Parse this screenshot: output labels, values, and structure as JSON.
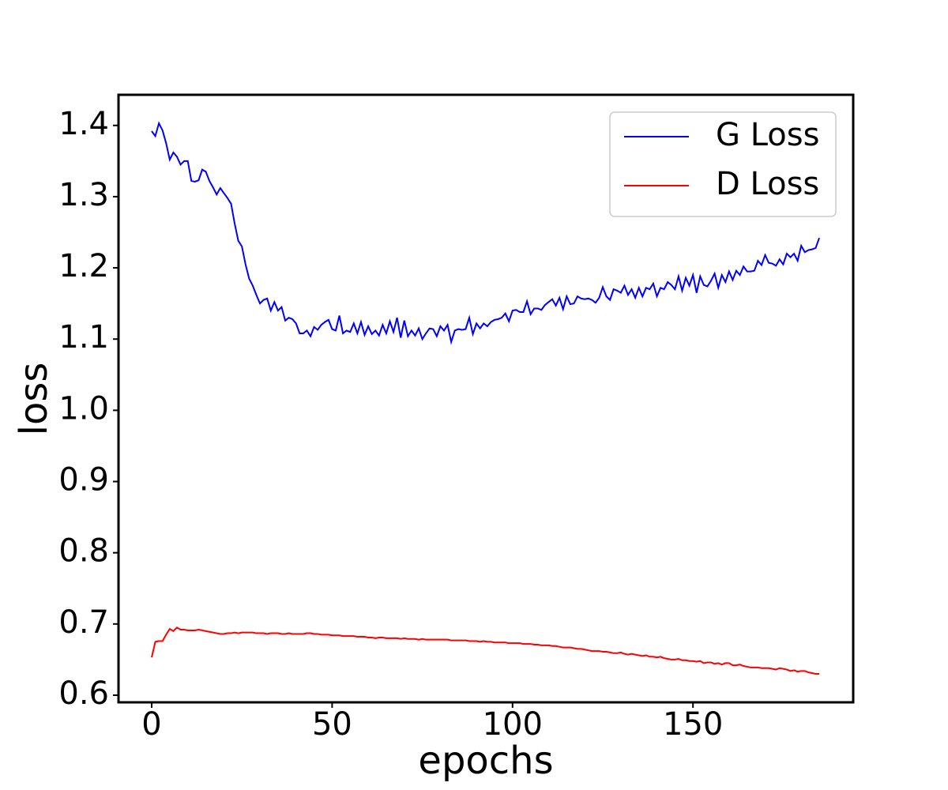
{
  "chart_data": {
    "type": "line",
    "xlabel": "epochs",
    "ylabel": "loss",
    "xlim": [
      -9.2,
      194.4
    ],
    "ylim": [
      0.59,
      1.443
    ],
    "xticks": [
      0,
      50,
      100,
      150
    ],
    "yticks": [
      0.6,
      0.7,
      0.8,
      0.9,
      {
        "value": 1,
        "label": "1.0"
      },
      1.1,
      1.2,
      1.3,
      1.4
    ],
    "legend": "upper right",
    "x": [
      0,
      1,
      2,
      3,
      4,
      5,
      6,
      7,
      8,
      9,
      10,
      11,
      12,
      13,
      14,
      15,
      16,
      17,
      18,
      19,
      20,
      21,
      22,
      23,
      24,
      25,
      26,
      27,
      28,
      29,
      30,
      31,
      32,
      33,
      34,
      35,
      36,
      37,
      38,
      39,
      40,
      41,
      42,
      43,
      44,
      45,
      46,
      47,
      48,
      49,
      50,
      51,
      52,
      53,
      54,
      55,
      56,
      57,
      58,
      59,
      60,
      61,
      62,
      63,
      64,
      65,
      66,
      67,
      68,
      69,
      70,
      71,
      72,
      73,
      74,
      75,
      76,
      77,
      78,
      79,
      80,
      81,
      82,
      83,
      84,
      85,
      86,
      87,
      88,
      89,
      90,
      91,
      92,
      93,
      94,
      95,
      96,
      97,
      98,
      99,
      100,
      101,
      102,
      103,
      104,
      105,
      106,
      107,
      108,
      109,
      110,
      111,
      112,
      113,
      114,
      115,
      116,
      117,
      118,
      119,
      120,
      121,
      122,
      123,
      124,
      125,
      126,
      127,
      128,
      129,
      130,
      131,
      132,
      133,
      134,
      135,
      136,
      137,
      138,
      139,
      140,
      141,
      142,
      143,
      144,
      145,
      146,
      147,
      148,
      149,
      150,
      151,
      152,
      153,
      154,
      155,
      156,
      157,
      158,
      159,
      160,
      161,
      162,
      163,
      164,
      165,
      166,
      167,
      168,
      169,
      170,
      171,
      172,
      173,
      174,
      175,
      176,
      177,
      178,
      179,
      180,
      181,
      182,
      183,
      184,
      185
    ],
    "series": [
      {
        "name": "G Loss",
        "color": "#0000ff",
        "values": [
          1.392,
          1.385,
          1.403,
          1.393,
          1.375,
          1.352,
          1.362,
          1.356,
          1.345,
          1.35,
          1.35,
          1.322,
          1.321,
          1.323,
          1.338,
          1.335,
          1.322,
          1.313,
          1.303,
          1.312,
          1.305,
          1.298,
          1.29,
          1.262,
          1.238,
          1.23,
          1.205,
          1.185,
          1.175,
          1.162,
          1.15,
          1.155,
          1.157,
          1.14,
          1.152,
          1.14,
          1.145,
          1.126,
          1.13,
          1.128,
          1.122,
          1.108,
          1.108,
          1.112,
          1.104,
          1.117,
          1.113,
          1.12,
          1.124,
          1.127,
          1.114,
          1.112,
          1.133,
          1.108,
          1.112,
          1.11,
          1.122,
          1.108,
          1.124,
          1.106,
          1.118,
          1.107,
          1.112,
          1.105,
          1.12,
          1.108,
          1.125,
          1.11,
          1.13,
          1.102,
          1.126,
          1.104,
          1.112,
          1.105,
          1.115,
          1.1,
          1.108,
          1.115,
          1.114,
          1.104,
          1.118,
          1.112,
          1.12,
          1.096,
          1.112,
          1.114,
          1.113,
          1.114,
          1.13,
          1.107,
          1.122,
          1.115,
          1.122,
          1.118,
          1.124,
          1.127,
          1.128,
          1.13,
          1.136,
          1.125,
          1.14,
          1.141,
          1.138,
          1.138,
          1.153,
          1.135,
          1.143,
          1.143,
          1.141,
          1.148,
          1.152,
          1.156,
          1.147,
          1.158,
          1.142,
          1.16,
          1.149,
          1.15,
          1.16,
          1.157,
          1.156,
          1.157,
          1.155,
          1.151,
          1.158,
          1.173,
          1.16,
          1.155,
          1.17,
          1.168,
          1.165,
          1.175,
          1.162,
          1.17,
          1.158,
          1.172,
          1.16,
          1.172,
          1.17,
          1.178,
          1.16,
          1.172,
          1.17,
          1.18,
          1.176,
          1.17,
          1.188,
          1.168,
          1.186,
          1.175,
          1.19,
          1.165,
          1.188,
          1.176,
          1.174,
          1.182,
          1.192,
          1.172,
          1.19,
          1.18,
          1.195,
          1.183,
          1.196,
          1.19,
          1.202,
          1.195,
          1.195,
          1.196,
          1.21,
          1.204,
          1.218,
          1.207,
          1.206,
          1.203,
          1.212,
          1.205,
          1.22,
          1.215,
          1.22,
          1.21,
          1.231,
          1.222,
          1.225,
          1.226,
          1.228,
          1.242
        ]
      },
      {
        "name": "D Loss",
        "color": "#ff0000",
        "values": [
          0.653,
          0.675,
          0.676,
          0.676,
          0.685,
          0.693,
          0.69,
          0.695,
          0.692,
          0.692,
          0.691,
          0.691,
          0.691,
          0.692,
          0.691,
          0.69,
          0.689,
          0.688,
          0.687,
          0.686,
          0.686,
          0.687,
          0.687,
          0.688,
          0.687,
          0.688,
          0.688,
          0.688,
          0.688,
          0.687,
          0.687,
          0.687,
          0.686,
          0.687,
          0.687,
          0.687,
          0.686,
          0.686,
          0.687,
          0.686,
          0.686,
          0.686,
          0.686,
          0.687,
          0.687,
          0.686,
          0.686,
          0.685,
          0.685,
          0.685,
          0.684,
          0.684,
          0.684,
          0.683,
          0.683,
          0.683,
          0.683,
          0.682,
          0.682,
          0.682,
          0.681,
          0.681,
          0.68,
          0.681,
          0.681,
          0.68,
          0.68,
          0.68,
          0.68,
          0.679,
          0.68,
          0.679,
          0.679,
          0.679,
          0.678,
          0.679,
          0.678,
          0.678,
          0.678,
          0.678,
          0.678,
          0.678,
          0.678,
          0.677,
          0.677,
          0.677,
          0.677,
          0.677,
          0.676,
          0.676,
          0.676,
          0.675,
          0.676,
          0.675,
          0.675,
          0.674,
          0.674,
          0.674,
          0.674,
          0.673,
          0.673,
          0.673,
          0.673,
          0.672,
          0.672,
          0.672,
          0.671,
          0.671,
          0.67,
          0.67,
          0.67,
          0.669,
          0.669,
          0.668,
          0.667,
          0.667,
          0.667,
          0.666,
          0.665,
          0.665,
          0.664,
          0.663,
          0.662,
          0.662,
          0.662,
          0.661,
          0.661,
          0.66,
          0.659,
          0.659,
          0.66,
          0.658,
          0.657,
          0.658,
          0.657,
          0.656,
          0.655,
          0.656,
          0.654,
          0.654,
          0.653,
          0.654,
          0.652,
          0.651,
          0.65,
          0.65,
          0.651,
          0.649,
          0.649,
          0.648,
          0.648,
          0.647,
          0.648,
          0.645,
          0.646,
          0.646,
          0.644,
          0.645,
          0.643,
          0.645,
          0.645,
          0.642,
          0.642,
          0.643,
          0.641,
          0.64,
          0.639,
          0.639,
          0.639,
          0.638,
          0.638,
          0.638,
          0.637,
          0.636,
          0.638,
          0.637,
          0.636,
          0.634,
          0.635,
          0.633,
          0.634,
          0.634,
          0.632,
          0.631,
          0.63,
          0.63
        ]
      }
    ]
  }
}
